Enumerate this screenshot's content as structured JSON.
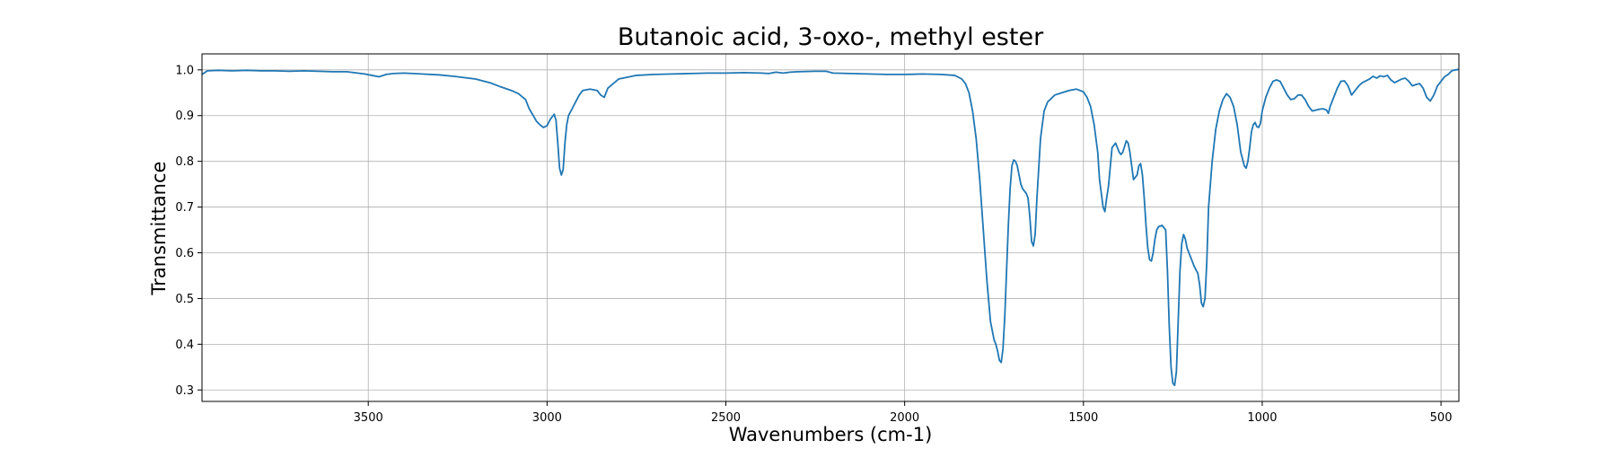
{
  "chart_data": {
    "type": "line",
    "title": "Butanoic acid, 3-oxo-, methyl ester",
    "xlabel": "Wavenumbers (cm-1)",
    "ylabel": "Transmittance",
    "xlim": [
      3965,
      450
    ],
    "ylim": [
      0.275,
      1.035
    ],
    "x_reversed": true,
    "grid": true,
    "x_ticks": [
      3500,
      3000,
      2500,
      2000,
      1500,
      1000,
      500
    ],
    "x_tick_labels": [
      "3500",
      "3000",
      "2500",
      "2000",
      "1500",
      "1000",
      "500"
    ],
    "y_ticks": [
      0.3,
      0.4,
      0.5,
      0.6,
      0.7,
      0.8,
      0.9,
      1.0
    ],
    "y_tick_labels": [
      "0.3",
      "0.4",
      "0.5",
      "0.6",
      "0.7",
      "0.8",
      "0.9",
      "1.0"
    ],
    "line_color": "#1f77b4",
    "series": [
      {
        "x": [
          3965,
          3950,
          3920,
          3880,
          3840,
          3800,
          3760,
          3720,
          3680,
          3640,
          3600,
          3560,
          3530,
          3510,
          3490,
          3470,
          3450,
          3430,
          3400,
          3350,
          3300,
          3250,
          3200,
          3160,
          3130,
          3100,
          3080,
          3060,
          3050,
          3040,
          3030,
          3020,
          3010,
          3000,
          2995,
          2990,
          2985,
          2980,
          2975,
          2970,
          2965,
          2960,
          2955,
          2950,
          2945,
          2940,
          2930,
          2920,
          2910,
          2900,
          2880,
          2860,
          2850,
          2840,
          2830,
          2800,
          2750,
          2700,
          2650,
          2600,
          2550,
          2500,
          2450,
          2400,
          2380,
          2360,
          2340,
          2320,
          2300,
          2250,
          2220,
          2200,
          2150,
          2100,
          2050,
          2000,
          1950,
          1900,
          1860,
          1840,
          1830,
          1820,
          1810,
          1800,
          1790,
          1780,
          1770,
          1760,
          1750,
          1745,
          1740,
          1735,
          1730,
          1725,
          1720,
          1715,
          1710,
          1705,
          1700,
          1695,
          1690,
          1685,
          1680,
          1675,
          1670,
          1665,
          1660,
          1655,
          1650,
          1645,
          1640,
          1635,
          1630,
          1620,
          1610,
          1600,
          1580,
          1560,
          1540,
          1520,
          1500,
          1490,
          1480,
          1470,
          1460,
          1455,
          1450,
          1445,
          1440,
          1435,
          1430,
          1420,
          1410,
          1400,
          1395,
          1390,
          1380,
          1375,
          1370,
          1365,
          1360,
          1350,
          1345,
          1340,
          1335,
          1330,
          1325,
          1320,
          1315,
          1310,
          1305,
          1300,
          1295,
          1290,
          1280,
          1270,
          1265,
          1260,
          1255,
          1250,
          1245,
          1240,
          1235,
          1230,
          1225,
          1220,
          1215,
          1210,
          1200,
          1190,
          1180,
          1175,
          1170,
          1165,
          1160,
          1155,
          1150,
          1140,
          1130,
          1120,
          1110,
          1100,
          1090,
          1080,
          1070,
          1060,
          1050,
          1045,
          1040,
          1035,
          1030,
          1025,
          1020,
          1015,
          1010,
          1005,
          1000,
          990,
          980,
          970,
          960,
          950,
          940,
          930,
          920,
          910,
          900,
          890,
          880,
          870,
          860,
          850,
          840,
          830,
          820,
          815,
          810,
          800,
          790,
          780,
          770,
          760,
          750,
          740,
          730,
          720,
          710,
          700,
          690,
          680,
          670,
          660,
          650,
          640,
          630,
          620,
          610,
          600,
          590,
          580,
          570,
          560,
          550,
          540,
          530,
          520,
          510,
          500,
          490,
          480,
          470,
          460,
          450
        ],
        "y": [
          0.99,
          0.998,
          0.999,
          0.998,
          0.999,
          0.998,
          0.998,
          0.997,
          0.998,
          0.997,
          0.996,
          0.996,
          0.993,
          0.991,
          0.988,
          0.985,
          0.99,
          0.992,
          0.993,
          0.991,
          0.989,
          0.985,
          0.98,
          0.972,
          0.963,
          0.955,
          0.948,
          0.935,
          0.915,
          0.902,
          0.888,
          0.88,
          0.874,
          0.878,
          0.886,
          0.893,
          0.898,
          0.903,
          0.89,
          0.84,
          0.785,
          0.77,
          0.782,
          0.84,
          0.88,
          0.9,
          0.915,
          0.93,
          0.945,
          0.955,
          0.958,
          0.955,
          0.945,
          0.94,
          0.96,
          0.98,
          0.988,
          0.99,
          0.991,
          0.992,
          0.993,
          0.993,
          0.994,
          0.993,
          0.992,
          0.995,
          0.993,
          0.995,
          0.996,
          0.997,
          0.997,
          0.993,
          0.992,
          0.991,
          0.99,
          0.99,
          0.991,
          0.99,
          0.988,
          0.98,
          0.97,
          0.95,
          0.91,
          0.85,
          0.76,
          0.65,
          0.54,
          0.45,
          0.41,
          0.4,
          0.385,
          0.365,
          0.36,
          0.39,
          0.46,
          0.56,
          0.66,
          0.74,
          0.79,
          0.803,
          0.8,
          0.79,
          0.77,
          0.75,
          0.74,
          0.735,
          0.73,
          0.72,
          0.68,
          0.625,
          0.615,
          0.64,
          0.72,
          0.85,
          0.91,
          0.93,
          0.945,
          0.95,
          0.955,
          0.958,
          0.952,
          0.94,
          0.92,
          0.88,
          0.82,
          0.76,
          0.73,
          0.7,
          0.69,
          0.72,
          0.745,
          0.83,
          0.84,
          0.82,
          0.815,
          0.82,
          0.845,
          0.84,
          0.82,
          0.79,
          0.76,
          0.77,
          0.79,
          0.795,
          0.77,
          0.72,
          0.66,
          0.61,
          0.585,
          0.582,
          0.6,
          0.63,
          0.65,
          0.657,
          0.66,
          0.65,
          0.56,
          0.44,
          0.35,
          0.315,
          0.31,
          0.34,
          0.45,
          0.56,
          0.62,
          0.64,
          0.63,
          0.61,
          0.59,
          0.57,
          0.555,
          0.53,
          0.49,
          0.482,
          0.5,
          0.58,
          0.7,
          0.8,
          0.87,
          0.91,
          0.935,
          0.948,
          0.94,
          0.92,
          0.88,
          0.82,
          0.79,
          0.785,
          0.8,
          0.83,
          0.865,
          0.88,
          0.885,
          0.876,
          0.874,
          0.883,
          0.91,
          0.94,
          0.96,
          0.975,
          0.978,
          0.975,
          0.96,
          0.945,
          0.935,
          0.937,
          0.945,
          0.945,
          0.935,
          0.92,
          0.91,
          0.912,
          0.914,
          0.915,
          0.912,
          0.905,
          0.92,
          0.94,
          0.96,
          0.975,
          0.976,
          0.965,
          0.945,
          0.955,
          0.965,
          0.972,
          0.976,
          0.98,
          0.986,
          0.982,
          0.987,
          0.985,
          0.988,
          0.978,
          0.972,
          0.976,
          0.98,
          0.982,
          0.975,
          0.965,
          0.968,
          0.97,
          0.96,
          0.94,
          0.932,
          0.945,
          0.965,
          0.975,
          0.985,
          0.99,
          0.998,
          1.0,
          1.001
        ]
      }
    ]
  }
}
